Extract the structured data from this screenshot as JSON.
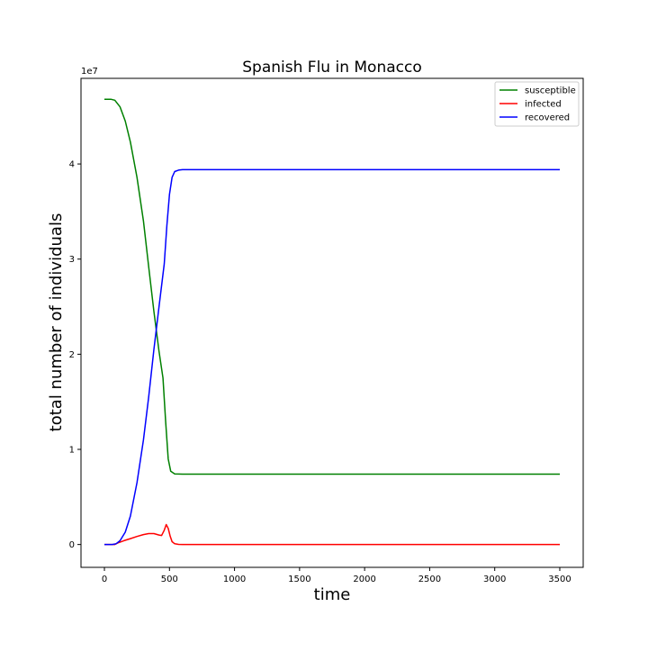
{
  "chart_data": {
    "type": "line",
    "title": "Spanish Flu in Monacco",
    "xlabel": "time",
    "ylabel": "total number of individuals",
    "y_offset_label": "1e7",
    "y_scale": 10000000,
    "xlim": [
      -180,
      3680
    ],
    "ylim": [
      -2400000,
      49000000
    ],
    "xticks": [
      0,
      500,
      1000,
      1500,
      2000,
      2500,
      3000,
      3500
    ],
    "xtick_labels": [
      "0",
      "500",
      "1000",
      "1500",
      "2000",
      "2500",
      "3000",
      "3500"
    ],
    "yticks": [
      0,
      10000000,
      20000000,
      30000000,
      40000000
    ],
    "ytick_labels": [
      "0",
      "1",
      "2",
      "3",
      "4"
    ],
    "grid": false,
    "legend_position": "top-right",
    "series": [
      {
        "name": "susceptible",
        "color": "#008000",
        "points": [
          [
            0,
            46800000
          ],
          [
            50,
            46800000
          ],
          [
            80,
            46700000
          ],
          [
            120,
            46000000
          ],
          [
            160,
            44500000
          ],
          [
            200,
            42300000
          ],
          [
            250,
            38600000
          ],
          [
            300,
            34000000
          ],
          [
            340,
            29200000
          ],
          [
            380,
            24500000
          ],
          [
            420,
            20300000
          ],
          [
            450,
            17500000
          ],
          [
            470,
            13000000
          ],
          [
            490,
            9000000
          ],
          [
            510,
            7700000
          ],
          [
            540,
            7420000
          ],
          [
            600,
            7400000
          ],
          [
            1000,
            7400000
          ],
          [
            2000,
            7400000
          ],
          [
            3000,
            7400000
          ],
          [
            3500,
            7400000
          ]
        ]
      },
      {
        "name": "infected",
        "color": "#ff0000",
        "points": [
          [
            0,
            0
          ],
          [
            80,
            0
          ],
          [
            100,
            150000
          ],
          [
            150,
            400000
          ],
          [
            200,
            620000
          ],
          [
            250,
            850000
          ],
          [
            300,
            1050000
          ],
          [
            340,
            1150000
          ],
          [
            380,
            1150000
          ],
          [
            420,
            1000000
          ],
          [
            440,
            950000
          ],
          [
            460,
            1500000
          ],
          [
            475,
            2100000
          ],
          [
            490,
            1700000
          ],
          [
            505,
            900000
          ],
          [
            520,
            300000
          ],
          [
            540,
            80000
          ],
          [
            570,
            10000
          ],
          [
            600,
            0
          ],
          [
            1000,
            0
          ],
          [
            2000,
            0
          ],
          [
            3000,
            0
          ],
          [
            3500,
            0
          ]
        ]
      },
      {
        "name": "recovered",
        "color": "#0000ff",
        "points": [
          [
            0,
            0
          ],
          [
            60,
            0
          ],
          [
            90,
            80000
          ],
          [
            120,
            400000
          ],
          [
            160,
            1300000
          ],
          [
            200,
            3000000
          ],
          [
            250,
            6500000
          ],
          [
            300,
            11000000
          ],
          [
            340,
            15500000
          ],
          [
            380,
            20500000
          ],
          [
            420,
            25000000
          ],
          [
            460,
            29500000
          ],
          [
            480,
            33500000
          ],
          [
            500,
            36800000
          ],
          [
            520,
            38600000
          ],
          [
            540,
            39200000
          ],
          [
            570,
            39350000
          ],
          [
            600,
            39400000
          ],
          [
            1000,
            39400000
          ],
          [
            2000,
            39400000
          ],
          [
            3000,
            39400000
          ],
          [
            3500,
            39400000
          ]
        ]
      }
    ]
  }
}
